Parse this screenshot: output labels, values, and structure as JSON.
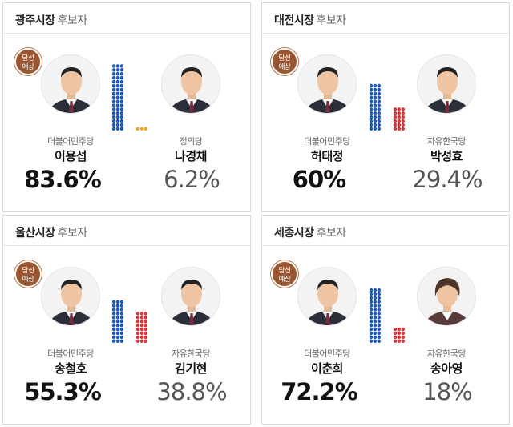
{
  "colors": {
    "democratic": "#1e5bb5",
    "people_power": "#d73a3a",
    "justice": "#f5a623",
    "badge": "#9a5632"
  },
  "badge": {
    "line1": "당선",
    "line2": "예상"
  },
  "races": [
    {
      "city": "광주시장",
      "suffix": "후보자",
      "winner": {
        "party": "더불어민주당",
        "name": "이용섭",
        "pct": "83.6%",
        "share": 0.836,
        "party_color": "democratic",
        "photo": "man-portrait-icon"
      },
      "runner": {
        "party": "정의당",
        "name": "나경채",
        "pct": "6.2%",
        "share": 0.062,
        "party_color": "justice",
        "photo": "man-portrait-icon"
      }
    },
    {
      "city": "대전시장",
      "suffix": "후보자",
      "winner": {
        "party": "더불어민주당",
        "name": "허태정",
        "pct": "60%",
        "share": 0.6,
        "party_color": "democratic",
        "photo": "man-portrait-icon"
      },
      "runner": {
        "party": "자유한국당",
        "name": "박성효",
        "pct": "29.4%",
        "share": 0.294,
        "party_color": "people_power",
        "photo": "man-portrait-icon"
      }
    },
    {
      "city": "울산시장",
      "suffix": "후보자",
      "winner": {
        "party": "더불어민주당",
        "name": "송철호",
        "pct": "55.3%",
        "share": 0.553,
        "party_color": "democratic",
        "photo": "man-portrait-icon"
      },
      "runner": {
        "party": "자유한국당",
        "name": "김기현",
        "pct": "38.8%",
        "share": 0.388,
        "party_color": "people_power",
        "photo": "man-portrait-icon"
      }
    },
    {
      "city": "세종시장",
      "suffix": "후보자",
      "winner": {
        "party": "더불어민주당",
        "name": "이춘희",
        "pct": "72.2%",
        "share": 0.722,
        "party_color": "democratic",
        "photo": "man-portrait-icon"
      },
      "runner": {
        "party": "자유한국당",
        "name": "송아영",
        "pct": "18%",
        "share": 0.18,
        "party_color": "people_power",
        "photo": "woman-portrait-icon"
      }
    }
  ]
}
